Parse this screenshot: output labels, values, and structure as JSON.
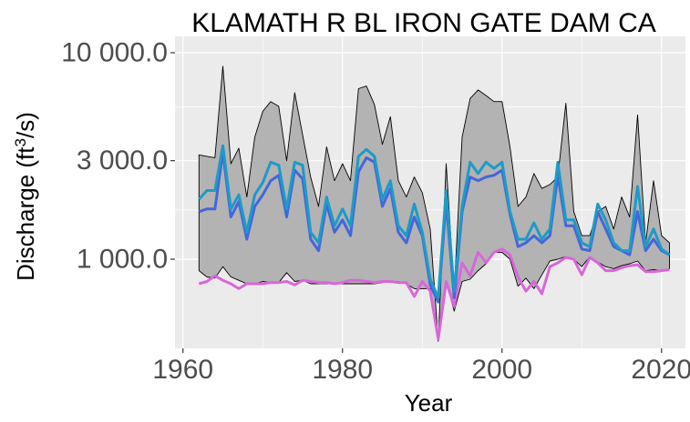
{
  "chart_data": {
    "type": "area",
    "title": "KLAMATH R BL IRON GATE DAM CA",
    "xlabel": "Year",
    "ylabel": "Discharge (ft³/s)",
    "y_scale": "log",
    "xlim": [
      1959,
      2023
    ],
    "ylim": [
      370,
      12000
    ],
    "x_ticks": [
      1960,
      1980,
      2000,
      2020
    ],
    "x_tick_labels": [
      "1960",
      "1980",
      "2000",
      "2020"
    ],
    "y_ticks": [
      1000,
      3000,
      10000
    ],
    "y_tick_labels": [
      "1 000.0",
      "3 000.0",
      "10 000.0"
    ],
    "grid": true,
    "legend": "none",
    "colors": {
      "panel": "#ebebeb",
      "grid": "#ffffff",
      "band": "#b3b3b3",
      "band_edge": "#000000",
      "mean": "#1d9bc6",
      "median": "#4466d9",
      "min7": "#d966d9"
    },
    "x": [
      1962,
      1963,
      1964,
      1965,
      1966,
      1967,
      1968,
      1969,
      1970,
      1971,
      1972,
      1973,
      1974,
      1975,
      1976,
      1977,
      1978,
      1979,
      1980,
      1981,
      1982,
      1983,
      1984,
      1985,
      1986,
      1987,
      1988,
      1989,
      1990,
      1991,
      1992,
      1993,
      1994,
      1995,
      1996,
      1997,
      1998,
      1999,
      2000,
      2001,
      2002,
      2003,
      2004,
      2005,
      2006,
      2007,
      2008,
      2009,
      2010,
      2011,
      2012,
      2013,
      2014,
      2015,
      2016,
      2017,
      2018,
      2019,
      2020,
      2021
    ],
    "series": [
      {
        "role": "max",
        "values": [
          3200,
          3150,
          3100,
          8600,
          2900,
          3450,
          2000,
          3900,
          5200,
          5800,
          5500,
          3000,
          6400,
          4000,
          2500,
          1800,
          3500,
          2400,
          2900,
          2400,
          6700,
          6900,
          5600,
          3600,
          4900,
          2400,
          2000,
          2500,
          2100,
          1400,
          400,
          2900,
          700,
          3900,
          6000,
          6600,
          6200,
          5800,
          5800,
          3500,
          1800,
          2000,
          2600,
          2200,
          2300,
          2500,
          5700,
          1700,
          1300,
          1300,
          1700,
          1800,
          1400,
          2000,
          1600,
          5000,
          1200,
          2400,
          1300,
          1200
        ]
      },
      {
        "role": "min",
        "values": [
          880,
          820,
          810,
          920,
          820,
          790,
          760,
          760,
          780,
          770,
          770,
          860,
          780,
          790,
          760,
          760,
          760,
          760,
          760,
          760,
          760,
          760,
          760,
          770,
          780,
          780,
          760,
          720,
          720,
          720,
          420,
          780,
          560,
          780,
          800,
          880,
          950,
          1080,
          1080,
          1000,
          740,
          810,
          720,
          840,
          980,
          1000,
          1030,
          1000,
          920,
          1030,
          970,
          920,
          900,
          930,
          950,
          980,
          880,
          890,
          880,
          900
        ]
      },
      {
        "role": "mean",
        "values": [
          1950,
          2150,
          2150,
          3550,
          1750,
          2050,
          1350,
          2050,
          2350,
          2950,
          2850,
          1750,
          2950,
          2850,
          1350,
          1200,
          2000,
          1450,
          1750,
          1450,
          3150,
          3400,
          3150,
          1950,
          2400,
          1450,
          1300,
          1850,
          1350,
          800,
          650,
          2150,
          700,
          1800,
          2950,
          2600,
          2950,
          2750,
          2950,
          1700,
          1250,
          1250,
          1500,
          1250,
          1400,
          2950,
          1550,
          1550,
          1200,
          1150,
          1850,
          1550,
          1200,
          1100,
          1100,
          2250,
          1150,
          1400,
          1120,
          1050
        ]
      },
      {
        "role": "median",
        "values": null,
        "values_list": [
          1700,
          1750,
          1750,
          3300,
          1600,
          1900,
          1250,
          1800,
          2050,
          2400,
          2550,
          1600,
          2700,
          2450,
          1250,
          1100,
          1850,
          1350,
          1550,
          1300,
          2650,
          3100,
          2950,
          1800,
          2200,
          1350,
          1200,
          1600,
          1300,
          750,
          620,
          1900,
          650,
          1700,
          2500,
          2400,
          2500,
          2550,
          2700,
          1650,
          1150,
          1200,
          1300,
          1200,
          1300,
          2550,
          1450,
          1450,
          1120,
          1100,
          1700,
          1400,
          1150,
          1100,
          1050,
          1700,
          1100,
          1250,
          1100,
          1050
        ]
      },
      {
        "role": "min7",
        "values": [
          760,
          780,
          830,
          790,
          760,
          720,
          760,
          760,
          760,
          770,
          770,
          780,
          750,
          790,
          780,
          770,
          770,
          760,
          770,
          790,
          790,
          780,
          770,
          780,
          780,
          770,
          770,
          660,
          780,
          700,
          410,
          780,
          590,
          960,
          830,
          1080,
          960,
          1080,
          1120,
          1050,
          820,
          700,
          780,
          680,
          920,
          960,
          1020,
          1000,
          840,
          1020,
          960,
          880,
          880,
          910,
          930,
          940,
          870,
          870,
          880,
          890
        ]
      }
    ]
  }
}
